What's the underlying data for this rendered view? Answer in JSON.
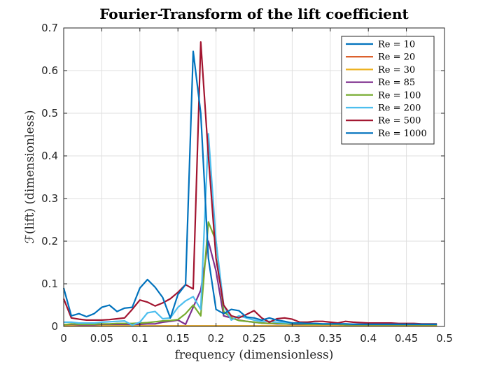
{
  "chart_data": {
    "type": "line",
    "title": "Fourier-Transform of the lift coefficient",
    "xlabel": "frequency (dimensionless)",
    "ylabel": "ℱ(lift) (dimensionless)",
    "xlim": [
      0,
      0.5
    ],
    "ylim": [
      0,
      0.7
    ],
    "xticks": [
      "0",
      "0.05",
      "0.1",
      "0.15",
      "0.2",
      "0.25",
      "0.3",
      "0.35",
      "0.4",
      "0.45",
      "0.5"
    ],
    "yticks": [
      "0",
      "0.1",
      "0.2",
      "0.3",
      "0.4",
      "0.5",
      "0.6",
      "0.7"
    ],
    "grid": true,
    "legend_position": "top-right",
    "x": [
      0,
      0.01,
      0.02,
      0.03,
      0.04,
      0.05,
      0.06,
      0.07,
      0.08,
      0.09,
      0.1,
      0.11,
      0.12,
      0.13,
      0.14,
      0.15,
      0.16,
      0.17,
      0.18,
      0.19,
      0.2,
      0.21,
      0.22,
      0.23,
      0.24,
      0.25,
      0.26,
      0.27,
      0.28,
      0.29,
      0.3,
      0.31,
      0.32,
      0.33,
      0.34,
      0.35,
      0.36,
      0.37,
      0.38,
      0.39,
      0.4,
      0.41,
      0.42,
      0.43,
      0.44,
      0.45,
      0.46,
      0.47,
      0.48,
      0.49
    ],
    "series": [
      {
        "name": "Re = 10",
        "color": "#0072BD",
        "values": [
          0.002,
          0.001,
          0.001,
          0.001,
          0.001,
          0.001,
          0.001,
          0.001,
          0.001,
          0.001,
          0.001,
          0.001,
          0.001,
          0.001,
          0.001,
          0.001,
          0.001,
          0.001,
          0.001,
          0.001,
          0.001,
          0.001,
          0.001,
          0.001,
          0.001,
          0.001,
          0.001,
          0.001,
          0.001,
          0.001,
          0.001,
          0.001,
          0.001,
          0.001,
          0.001,
          0.001,
          0.001,
          0.001,
          0.001,
          0.001,
          0.001,
          0.001,
          0.001,
          0.001,
          0.001,
          0.001,
          0.001,
          0.001,
          0.001,
          0.001
        ]
      },
      {
        "name": "Re = 20",
        "color": "#D95319",
        "values": [
          0.002,
          0.001,
          0.001,
          0.001,
          0.001,
          0.001,
          0.001,
          0.001,
          0.001,
          0.001,
          0.001,
          0.001,
          0.001,
          0.001,
          0.001,
          0.001,
          0.001,
          0.001,
          0.001,
          0.001,
          0.001,
          0.001,
          0.001,
          0.001,
          0.001,
          0.001,
          0.001,
          0.001,
          0.001,
          0.001,
          0.001,
          0.001,
          0.001,
          0.001,
          0.001,
          0.001,
          0.001,
          0.001,
          0.001,
          0.001,
          0.001,
          0.001,
          0.001,
          0.001,
          0.001,
          0.001,
          0.001,
          0.001,
          0.001,
          0.001
        ]
      },
      {
        "name": "Re = 30",
        "color": "#EDB120",
        "values": [
          0.002,
          0.001,
          0.001,
          0.001,
          0.001,
          0.001,
          0.001,
          0.001,
          0.001,
          0.001,
          0.001,
          0.001,
          0.001,
          0.001,
          0.001,
          0.001,
          0.001,
          0.001,
          0.001,
          0.001,
          0.001,
          0.001,
          0.001,
          0.001,
          0.001,
          0.001,
          0.001,
          0.001,
          0.001,
          0.001,
          0.001,
          0.001,
          0.001,
          0.001,
          0.001,
          0.001,
          0.001,
          0.001,
          0.001,
          0.001,
          0.001,
          0.001,
          0.001,
          0.001,
          0.001,
          0.001,
          0.001,
          0.001,
          0.001,
          0.001
        ]
      },
      {
        "name": "Re = 85",
        "color": "#7E2F8E",
        "values": [
          0.004,
          0.005,
          0.004,
          0.004,
          0.004,
          0.005,
          0.005,
          0.005,
          0.005,
          0.005,
          0.005,
          0.006,
          0.006,
          0.01,
          0.012,
          0.015,
          0.005,
          0.045,
          0.085,
          0.2,
          0.13,
          0.025,
          0.02,
          0.015,
          0.012,
          0.01,
          0.008,
          0.007,
          0.006,
          0.006,
          0.005,
          0.005,
          0.005,
          0.005,
          0.005,
          0.005,
          0.005,
          0.004,
          0.004,
          0.004,
          0.004,
          0.004,
          0.004,
          0.004,
          0.004,
          0.004,
          0.004,
          0.004,
          0.004,
          0.004
        ]
      },
      {
        "name": "Re = 100",
        "color": "#77AC30",
        "values": [
          0.004,
          0.006,
          0.005,
          0.005,
          0.005,
          0.006,
          0.006,
          0.007,
          0.007,
          0.007,
          0.008,
          0.009,
          0.011,
          0.013,
          0.014,
          0.016,
          0.03,
          0.05,
          0.025,
          0.245,
          0.2,
          0.035,
          0.02,
          0.014,
          0.012,
          0.01,
          0.008,
          0.007,
          0.007,
          0.006,
          0.006,
          0.006,
          0.005,
          0.005,
          0.005,
          0.005,
          0.005,
          0.004,
          0.004,
          0.004,
          0.004,
          0.004,
          0.004,
          0.004,
          0.004,
          0.004,
          0.004,
          0.004,
          0.004,
          0.004
        ]
      },
      {
        "name": "Re = 200",
        "color": "#4DBEEE",
        "values": [
          0.01,
          0.01,
          0.008,
          0.008,
          0.008,
          0.01,
          0.011,
          0.012,
          0.013,
          0.003,
          0.01,
          0.032,
          0.035,
          0.018,
          0.02,
          0.045,
          0.06,
          0.07,
          0.04,
          0.452,
          0.2,
          0.05,
          0.015,
          0.025,
          0.02,
          0.015,
          0.012,
          0.012,
          0.01,
          0.009,
          0.008,
          0.008,
          0.007,
          0.007,
          0.006,
          0.006,
          0.006,
          0.006,
          0.005,
          0.005,
          0.005,
          0.005,
          0.005,
          0.005,
          0.005,
          0.005,
          0.005,
          0.005,
          0.005,
          0.005
        ]
      },
      {
        "name": "Re = 500",
        "color": "#A2142F",
        "values": [
          0.065,
          0.02,
          0.017,
          0.015,
          0.015,
          0.015,
          0.016,
          0.018,
          0.02,
          0.04,
          0.062,
          0.057,
          0.048,
          0.055,
          0.065,
          0.08,
          0.098,
          0.088,
          0.667,
          0.4,
          0.16,
          0.05,
          0.025,
          0.02,
          0.028,
          0.037,
          0.02,
          0.01,
          0.018,
          0.02,
          0.017,
          0.01,
          0.01,
          0.012,
          0.012,
          0.01,
          0.008,
          0.012,
          0.01,
          0.009,
          0.008,
          0.008,
          0.008,
          0.008,
          0.007,
          0.007,
          0.007,
          0.006,
          0.006,
          0.006
        ]
      },
      {
        "name": "Re = 1000",
        "color": "#0072BD",
        "values": [
          0.09,
          0.025,
          0.03,
          0.023,
          0.03,
          0.045,
          0.05,
          0.035,
          0.043,
          0.045,
          0.09,
          0.11,
          0.092,
          0.068,
          0.02,
          0.075,
          0.098,
          0.645,
          0.5,
          0.16,
          0.04,
          0.03,
          0.04,
          0.037,
          0.022,
          0.02,
          0.015,
          0.02,
          0.015,
          0.012,
          0.008,
          0.008,
          0.007,
          0.007,
          0.006,
          0.006,
          0.006,
          0.006,
          0.005,
          0.005,
          0.005,
          0.005,
          0.005,
          0.005,
          0.005,
          0.005,
          0.005,
          0.005,
          0.005,
          0.005
        ]
      }
    ]
  }
}
